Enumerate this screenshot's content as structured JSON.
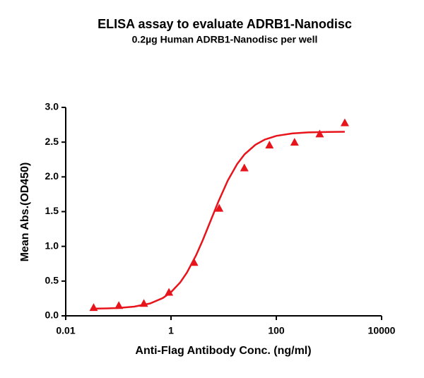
{
  "chart_data": {
    "type": "scatter",
    "title": "ELISA assay to evaluate ADRB1-Nanodisc",
    "subtitle": "0.2µg Human ADRB1-Nanodisc per well",
    "x_label": "Anti-Flag Antibody Conc. (ng/ml)",
    "y_label": "Mean Abs.(OD450)",
    "x_scale": "log",
    "xlim": [
      0.01,
      10000
    ],
    "xticks": [
      0.01,
      1,
      100,
      10000
    ],
    "ylim": [
      0,
      3
    ],
    "yticks": [
      {
        "value": 0,
        "label": "0.0"
      },
      {
        "value": 0.5,
        "label": "0.5"
      },
      {
        "value": 1,
        "label": "1.0"
      },
      {
        "value": 1.5,
        "label": "1.5"
      },
      {
        "value": 2,
        "label": "2.0"
      },
      {
        "value": 2.5,
        "label": "2.5"
      },
      {
        "value": 3,
        "label": "3.0"
      }
    ],
    "color": "#e8141b",
    "x": [
      0.0339,
      0.102,
      0.305,
      0.914,
      2.74,
      8.23,
      24.7,
      74.1,
      222,
      667,
      2000
    ],
    "values": [
      0.11,
      0.14,
      0.17,
      0.33,
      0.76,
      1.54,
      2.12,
      2.45,
      2.49,
      2.61,
      2.77
    ],
    "fit": {
      "x": [
        0.03,
        0.06,
        0.1,
        0.2,
        0.4,
        0.7,
        1,
        1.5,
        2,
        3,
        4,
        6,
        8,
        12,
        18,
        25,
        40,
        60,
        100,
        200,
        400,
        1000,
        2000
      ],
      "values": [
        0.103,
        0.107,
        0.113,
        0.132,
        0.178,
        0.256,
        0.341,
        0.482,
        0.62,
        0.873,
        1.088,
        1.418,
        1.651,
        1.948,
        2.183,
        2.325,
        2.462,
        2.536,
        2.59,
        2.625,
        2.64,
        2.647,
        2.649
      ]
    }
  }
}
